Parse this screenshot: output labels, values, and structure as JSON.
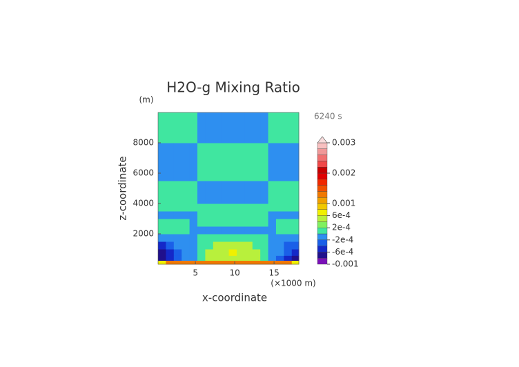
{
  "chart_data": {
    "type": "contour",
    "title": "H2O-g Mixing Ratio",
    "y_unit": "(m)",
    "time_label": "6240 s",
    "x_unit": "(×1000 m)",
    "xlabel": "x-coordinate",
    "ylabel": "z-coordinate",
    "xlim": [
      0.25,
      18.15
    ],
    "ylim": [
      0,
      10000
    ],
    "xticks": [
      5,
      10,
      15
    ],
    "yticks": [
      2000,
      4000,
      6000,
      8000
    ],
    "x": [
      0.75,
      1.75,
      2.75,
      3.75,
      4.75,
      5.75,
      6.75,
      7.75,
      8.75,
      9.75,
      10.75,
      11.75,
      12.75,
      13.75,
      14.75,
      15.75,
      16.75,
      17.75
    ],
    "z": [
      100,
      400,
      750,
      1250,
      1750,
      2250,
      2750,
      3250,
      3750,
      4250,
      4750,
      5250,
      5750,
      6250,
      6750,
      7250,
      7750,
      8250,
      8750,
      9250,
      9750
    ],
    "values": [
      [
        0.0007,
        0.0013,
        0.0013,
        0.0013,
        0.0013,
        0.0013,
        0.0013,
        0.0013,
        0.0013,
        0.0013,
        0.0013,
        0.0013,
        0.0013,
        0.0013,
        0.0013,
        0.0013,
        0.0013,
        0.0007
      ],
      [
        -0.0007,
        -0.0005,
        -0.0003,
        -0.0001,
        -0.0001,
        0.0001,
        0.0005,
        0.0005,
        0.0005,
        0.0005,
        0.0005,
        0.0005,
        0.0005,
        0.0001,
        -0.0001,
        -0.0003,
        -0.0005,
        -0.0007
      ],
      [
        -0.0007,
        -0.0005,
        -0.0003,
        -0.0001,
        -0.0001,
        0.0001,
        0.0005,
        0.0005,
        0.0005,
        0.0007,
        0.0005,
        0.0005,
        0.0005,
        0.0001,
        -0.0001,
        -0.0001,
        -0.0003,
        -0.0005
      ],
      [
        -0.0005,
        -0.0003,
        -0.0001,
        -0.0001,
        -0.0001,
        0.0001,
        0.0001,
        0.0005,
        0.0005,
        0.0005,
        0.0005,
        0.0005,
        0.0001,
        0.0001,
        -0.0001,
        -0.0001,
        -0.0003,
        -0.0003
      ],
      [
        -0.0001,
        -0.0001,
        -0.0001,
        -0.0001,
        -0.0001,
        0.0001,
        0.0001,
        0.0001,
        0.0001,
        0.0001,
        0.0001,
        0.0001,
        0.0001,
        0.0001,
        -0.0001,
        -0.0001,
        -0.0001,
        -0.0001
      ],
      [
        0.0001,
        0.0001,
        0.0001,
        0.0001,
        -0.0001,
        -0.0001,
        -0.0001,
        -0.0001,
        -0.0001,
        -0.0001,
        -0.0001,
        -0.0001,
        -0.0001,
        -0.0001,
        -0.0001,
        0.0001,
        0.0001,
        0.0001
      ],
      [
        0.0001,
        0.0001,
        0.0001,
        0.0001,
        -0.0001,
        0.0001,
        0.0001,
        0.0001,
        0.0001,
        0.0001,
        0.0001,
        0.0001,
        0.0001,
        0.0001,
        -0.0001,
        0.0001,
        0.0001,
        0.0001
      ],
      [
        -0.0001,
        -0.0001,
        -0.0001,
        -0.0001,
        -0.0001,
        0.0001,
        0.0001,
        0.0001,
        0.0001,
        0.0001,
        0.0001,
        0.0001,
        0.0001,
        0.0001,
        -0.0001,
        -0.0001,
        -0.0001,
        -0.0001
      ],
      [
        0.0001,
        0.0001,
        0.0001,
        0.0001,
        0.0001,
        0.0001,
        0.0001,
        0.0001,
        0.0001,
        0.0001,
        0.0001,
        0.0001,
        0.0001,
        0.0001,
        0.0001,
        0.0001,
        0.0001,
        0.0001
      ],
      [
        0.0001,
        0.0001,
        0.0001,
        0.0001,
        0.0001,
        -0.0001,
        -0.0001,
        -0.0001,
        -0.0001,
        -0.0001,
        -0.0001,
        -0.0001,
        -0.0001,
        -0.0001,
        0.0001,
        0.0001,
        0.0001,
        0.0001
      ],
      [
        0.0001,
        0.0001,
        0.0001,
        0.0001,
        0.0001,
        -0.0001,
        -0.0001,
        -0.0001,
        -0.0001,
        -0.0001,
        -0.0001,
        -0.0001,
        -0.0001,
        -0.0001,
        0.0001,
        0.0001,
        0.0001,
        0.0001
      ],
      [
        0.0001,
        0.0001,
        0.0001,
        0.0001,
        0.0001,
        -0.0001,
        -0.0001,
        -0.0001,
        -0.0001,
        -0.0001,
        -0.0001,
        -0.0001,
        -0.0001,
        -0.0001,
        0.0001,
        0.0001,
        0.0001,
        0.0001
      ],
      [
        -0.0001,
        -0.0001,
        -0.0001,
        -0.0001,
        -0.0001,
        0.0001,
        0.0001,
        0.0001,
        0.0001,
        0.0001,
        0.0001,
        0.0001,
        0.0001,
        0.0001,
        -0.0001,
        -0.0001,
        -0.0001,
        -0.0001
      ],
      [
        -0.0001,
        -0.0001,
        -0.0001,
        -0.0001,
        -0.0001,
        0.0001,
        0.0001,
        0.0001,
        0.0001,
        0.0001,
        0.0001,
        0.0001,
        0.0001,
        0.0001,
        -0.0001,
        -0.0001,
        -0.0001,
        -0.0001
      ],
      [
        -0.0001,
        -0.0001,
        -0.0001,
        -0.0001,
        -0.0001,
        0.0001,
        0.0001,
        0.0001,
        0.0001,
        0.0001,
        0.0001,
        0.0001,
        0.0001,
        0.0001,
        -0.0001,
        -0.0001,
        -0.0001,
        -0.0001
      ],
      [
        -0.0001,
        -0.0001,
        -0.0001,
        -0.0001,
        -0.0001,
        0.0001,
        0.0001,
        0.0001,
        0.0001,
        0.0001,
        0.0001,
        0.0001,
        0.0001,
        0.0001,
        -0.0001,
        -0.0001,
        -0.0001,
        -0.0001
      ],
      [
        -0.0001,
        -0.0001,
        -0.0001,
        -0.0001,
        -0.0001,
        0.0001,
        0.0001,
        0.0001,
        0.0001,
        0.0001,
        0.0001,
        0.0001,
        0.0001,
        0.0001,
        -0.0001,
        -0.0001,
        -0.0001,
        -0.0001
      ],
      [
        0.0001,
        0.0001,
        0.0001,
        0.0001,
        0.0001,
        -0.0001,
        -0.0001,
        -0.0001,
        -0.0001,
        -0.0001,
        -0.0001,
        -0.0001,
        -0.0001,
        -0.0001,
        0.0001,
        0.0001,
        0.0001,
        0.0001
      ],
      [
        0.0001,
        0.0001,
        0.0001,
        0.0001,
        0.0001,
        -0.0001,
        -0.0001,
        -0.0001,
        -0.0001,
        -0.0001,
        -0.0001,
        -0.0001,
        -0.0001,
        -0.0001,
        0.0001,
        0.0001,
        0.0001,
        0.0001
      ],
      [
        0.0001,
        0.0001,
        0.0001,
        0.0001,
        0.0001,
        -0.0001,
        -0.0001,
        -0.0001,
        -0.0001,
        -0.0001,
        -0.0001,
        -0.0001,
        -0.0001,
        -0.0001,
        0.0001,
        0.0001,
        0.0001,
        0.0001
      ],
      [
        0.0001,
        0.0001,
        0.0001,
        0.0001,
        0.0001,
        -0.0001,
        -0.0001,
        -0.0001,
        -0.0001,
        -0.0001,
        -0.0001,
        -0.0001,
        -0.0001,
        -0.0001,
        0.0001,
        0.0001,
        0.0001,
        0.0001
      ]
    ],
    "levels": [
      -0.001,
      -0.0008,
      -0.0006,
      -0.0004,
      -0.0002,
      0,
      0.0002,
      0.0004,
      0.0006,
      0.0008,
      0.001,
      0.0012,
      0.0014,
      0.0016,
      0.0018,
      0.002,
      0.0022,
      0.0024,
      0.0026,
      0.0028,
      0.003
    ],
    "colors": [
      "#7a10b8",
      "#20108c",
      "#1428c8",
      "#1a5fe8",
      "#2e8ff0",
      "#40e6a0",
      "#80f060",
      "#b8f03c",
      "#f0f000",
      "#f0c800",
      "#f0a000",
      "#f07800",
      "#f05000",
      "#f02800",
      "#e00000",
      "#c80000",
      "#f04848",
      "#f07070",
      "#f09898",
      "#f8c0c0"
    ],
    "over_color": "#f8dcdc",
    "colorbar_ticks": [
      -0.001,
      {
        "value": -0.0006,
        "label": "-6e-4"
      },
      {
        "value": -0.0002,
        "label": "-2e-4"
      },
      {
        "value": 0.0002,
        "label": "2e-4"
      },
      {
        "value": 0.0006,
        "label": "6e-4"
      },
      0.001,
      0.002,
      0.003
    ]
  }
}
